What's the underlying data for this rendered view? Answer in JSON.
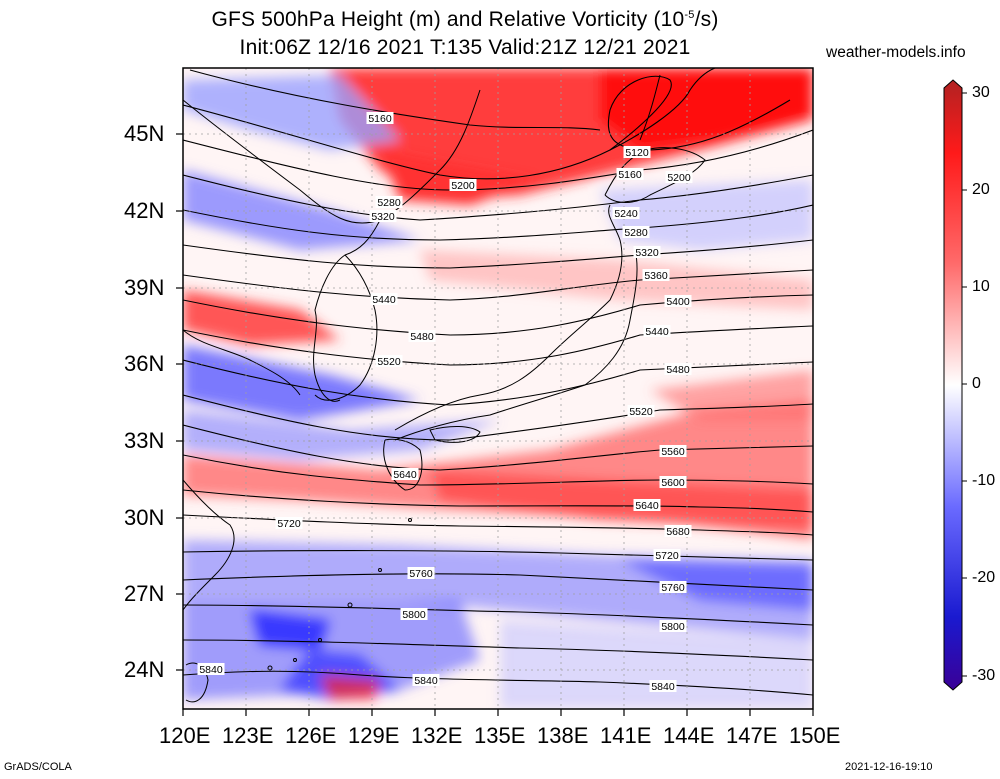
{
  "title": {
    "line1_pre": "GFS 500hPa Height (m) and Relative Vorticity (10",
    "line1_sup": "-5",
    "line1_post": "/s)",
    "line2": "Init:06Z 12/16 2021 T:135 Valid:21Z 12/21 2021"
  },
  "site": "weather-models.info",
  "footer": {
    "left": "GrADS/COLA",
    "right": "2021-12-16-19:10"
  },
  "lat_labels": [
    "45N",
    "42N",
    "39N",
    "36N",
    "33N",
    "30N",
    "27N",
    "24N"
  ],
  "lon_labels": [
    "120E",
    "123E",
    "126E",
    "129E",
    "132E",
    "135E",
    "138E",
    "141E",
    "144E",
    "147E",
    "150E"
  ],
  "colorbar": {
    "labels": [
      "30",
      "20",
      "10",
      "0",
      "-10",
      "-20",
      "-30"
    ],
    "colors": [
      "#b22222",
      "#ff2020",
      "#ff8080",
      "#ffffff",
      "#8080ff",
      "#2020e0",
      "#3a0096"
    ]
  },
  "contour_labels": [
    {
      "text": "5160"
    },
    {
      "text": "5120"
    },
    {
      "text": "5160"
    },
    {
      "text": "5200"
    },
    {
      "text": "5200"
    },
    {
      "text": "5240"
    },
    {
      "text": "5280"
    },
    {
      "text": "5280"
    },
    {
      "text": "5320"
    },
    {
      "text": "5320"
    },
    {
      "text": "5360"
    },
    {
      "text": "5400"
    },
    {
      "text": "5440"
    },
    {
      "text": "5440"
    },
    {
      "text": "5480"
    },
    {
      "text": "5480"
    },
    {
      "text": "5520"
    },
    {
      "text": "5520"
    },
    {
      "text": "5560"
    },
    {
      "text": "5600"
    },
    {
      "text": "5640"
    },
    {
      "text": "5640"
    },
    {
      "text": "5680"
    },
    {
      "text": "5720"
    },
    {
      "text": "5720"
    },
    {
      "text": "5760"
    },
    {
      "text": "5760"
    },
    {
      "text": "5800"
    },
    {
      "text": "5800"
    },
    {
      "text": "5840"
    },
    {
      "text": "5840"
    },
    {
      "text": "5840"
    }
  ],
  "colors": {
    "red_strong": "#ff1a1a",
    "red_mid": "#ff6666",
    "red_light": "#ffb3b3",
    "blue_strong": "#1f1fff",
    "blue_mid": "#6b6bff",
    "blue_light": "#c8c8ff"
  }
}
